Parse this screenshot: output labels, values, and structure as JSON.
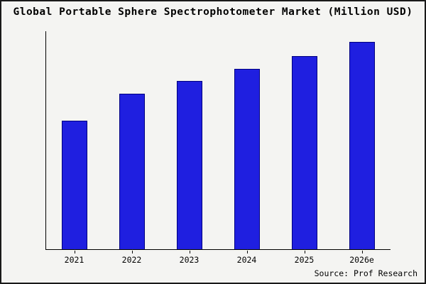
{
  "chart_data": {
    "type": "bar",
    "title": "Global Portable Sphere Spectrophotometer Market (Million USD)",
    "categories": [
      "2021",
      "2022",
      "2023",
      "2024",
      "2025",
      "2026e"
    ],
    "values": [
      62,
      75,
      81,
      87,
      93,
      100
    ],
    "ylim": [
      0,
      105
    ],
    "xlabel": "",
    "ylabel": "",
    "grid": false,
    "legend_position": "none",
    "bar_color": "#1f1fe0",
    "bar_border_color": "#000080",
    "background_color": "#f4f4f2"
  },
  "source": "Source: Prof Research"
}
